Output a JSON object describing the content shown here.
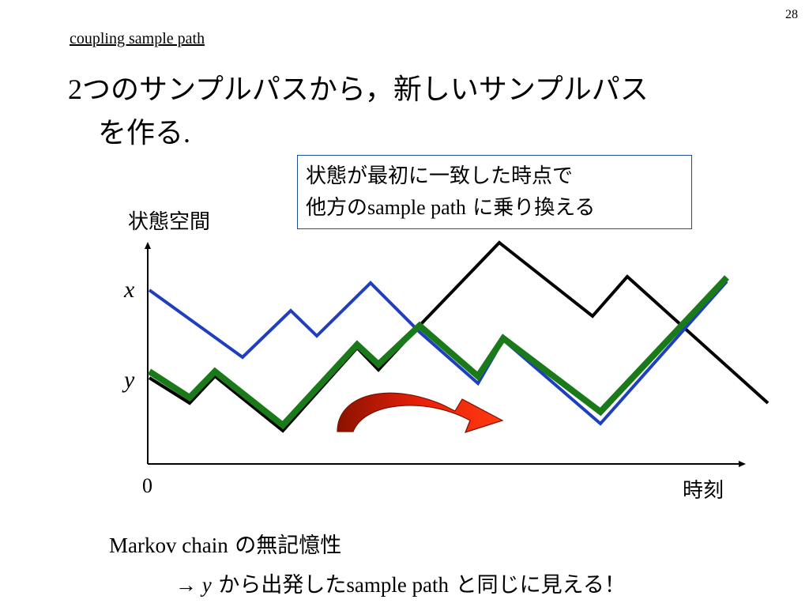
{
  "page_number": "28",
  "section_title": "coupling sample path",
  "heading": {
    "num": "2",
    "text1": "つのサンプルパスから，新しいサンプルパス",
    "text2": "を作る",
    "period": "."
  },
  "callout": {
    "line1": "状態が最初に一致した時点で",
    "line2_prefix": "他方の",
    "line2_latin": "sample path",
    "line2_suffix": " に乗り換える"
  },
  "axes": {
    "ylabel": "状態空間",
    "xlabel": "時刻",
    "origin": "0",
    "x_state": "x",
    "y_state": "y"
  },
  "colors": {
    "blue_path": "#1f3fbf",
    "black_path": "#000000",
    "green_path": "#1a7a1a",
    "arrow_red": "#e8200a",
    "arrow_dark": "#8a1200",
    "box_border": "#1f4e9c"
  },
  "notes": {
    "line1_latin": "Markov chain",
    "line1_jp": " の無記憶性",
    "line2_arrow": "→ ",
    "line2_var": "y",
    "line2_jp1": " から出発した",
    "line2_latin": "sample path",
    "line2_jp2": " と同じに見える！"
  }
}
